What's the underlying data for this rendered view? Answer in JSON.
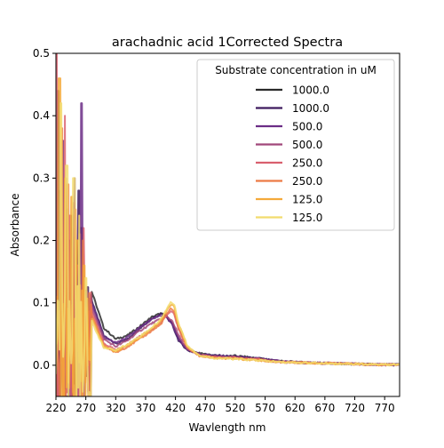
{
  "chart_data": {
    "type": "line",
    "title": "arachadnic acid 1Corrected Spectra",
    "xlabel": "Wavlength nm",
    "ylabel": "Absorbance",
    "xlim": [
      220,
      795
    ],
    "ylim": [
      -0.05,
      0.5
    ],
    "xticks": [
      220,
      270,
      320,
      370,
      420,
      470,
      520,
      570,
      620,
      670,
      720,
      770
    ],
    "yticks": [
      0.0,
      0.1,
      0.2,
      0.3,
      0.4,
      0.5
    ],
    "xtick_labels": [
      "220",
      "270",
      "320",
      "370",
      "420",
      "470",
      "520",
      "570",
      "620",
      "670",
      "720",
      "770"
    ],
    "ytick_labels": [
      "0.0",
      "0.1",
      "0.2",
      "0.3",
      "0.4",
      "0.5"
    ],
    "grid": false,
    "legend": {
      "title": "Substrate concentration in uM",
      "location": "upper right"
    },
    "series": [
      {
        "name": "1000.0",
        "color": "#2b2b2b",
        "spikes": [
          [
            226,
            0.28
          ],
          [
            238,
            0.25
          ],
          [
            248,
            0.24
          ],
          [
            262,
            0.22
          ],
          [
            270,
            0.05
          ]
        ],
        "points": [
          [
            280,
            0.118
          ],
          [
            300,
            0.06
          ],
          [
            320,
            0.042
          ],
          [
            340,
            0.048
          ],
          [
            360,
            0.062
          ],
          [
            380,
            0.077
          ],
          [
            395,
            0.083
          ],
          [
            405,
            0.079
          ],
          [
            415,
            0.066
          ],
          [
            425,
            0.042
          ],
          [
            440,
            0.025
          ],
          [
            460,
            0.019
          ],
          [
            480,
            0.016
          ],
          [
            500,
            0.014
          ],
          [
            520,
            0.015
          ],
          [
            540,
            0.013
          ],
          [
            560,
            0.011
          ],
          [
            580,
            0.008
          ],
          [
            600,
            0.006
          ],
          [
            640,
            0.004
          ],
          [
            680,
            0.003
          ],
          [
            720,
            0.002
          ],
          [
            760,
            0.001
          ],
          [
            795,
            0.001
          ]
        ]
      },
      {
        "name": "1000.0",
        "color": "#3d1a5e",
        "spikes": [
          [
            224,
            0.44
          ],
          [
            236,
            0.3
          ],
          [
            246,
            0.22
          ],
          [
            258,
            0.28
          ],
          [
            268,
            0.12
          ]
        ],
        "points": [
          [
            280,
            0.104
          ],
          [
            300,
            0.048
          ],
          [
            320,
            0.034
          ],
          [
            340,
            0.042
          ],
          [
            360,
            0.058
          ],
          [
            380,
            0.074
          ],
          [
            395,
            0.082
          ],
          [
            405,
            0.078
          ],
          [
            415,
            0.064
          ],
          [
            425,
            0.04
          ],
          [
            440,
            0.024
          ],
          [
            460,
            0.018
          ],
          [
            480,
            0.016
          ],
          [
            500,
            0.015
          ],
          [
            520,
            0.014
          ],
          [
            540,
            0.012
          ],
          [
            560,
            0.011
          ],
          [
            580,
            0.008
          ],
          [
            600,
            0.006
          ],
          [
            640,
            0.004
          ],
          [
            680,
            0.003
          ],
          [
            720,
            0.002
          ],
          [
            760,
            0.001
          ],
          [
            795,
            0.001
          ]
        ]
      },
      {
        "name": "500.0",
        "color": "#6b2d86",
        "spikes": [
          [
            232,
            0.36
          ],
          [
            242,
            0.2
          ],
          [
            252,
            0.3
          ],
          [
            262,
            0.42
          ],
          [
            272,
            0.1
          ]
        ],
        "points": [
          [
            280,
            0.098
          ],
          [
            300,
            0.045
          ],
          [
            320,
            0.036
          ],
          [
            340,
            0.045
          ],
          [
            360,
            0.06
          ],
          [
            380,
            0.073
          ],
          [
            395,
            0.08
          ],
          [
            405,
            0.077
          ],
          [
            415,
            0.065
          ],
          [
            425,
            0.043
          ],
          [
            440,
            0.025
          ],
          [
            460,
            0.018
          ],
          [
            480,
            0.015
          ],
          [
            500,
            0.014
          ],
          [
            520,
            0.013
          ],
          [
            540,
            0.012
          ],
          [
            560,
            0.01
          ],
          [
            580,
            0.008
          ],
          [
            600,
            0.006
          ],
          [
            640,
            0.004
          ],
          [
            680,
            0.003
          ],
          [
            720,
            0.002
          ],
          [
            760,
            0.001
          ],
          [
            795,
            0.001
          ]
        ]
      },
      {
        "name": "500.0",
        "color": "#a1477a",
        "spikes": [
          [
            228,
            0.32
          ],
          [
            240,
            0.18
          ],
          [
            250,
            0.26
          ],
          [
            260,
            0.21
          ],
          [
            270,
            0.08
          ]
        ],
        "points": [
          [
            280,
            0.092
          ],
          [
            300,
            0.042
          ],
          [
            320,
            0.03
          ],
          [
            340,
            0.04
          ],
          [
            360,
            0.055
          ],
          [
            380,
            0.067
          ],
          [
            395,
            0.074
          ],
          [
            405,
            0.078
          ],
          [
            415,
            0.071
          ],
          [
            425,
            0.048
          ],
          [
            440,
            0.025
          ],
          [
            460,
            0.017
          ],
          [
            480,
            0.014
          ],
          [
            500,
            0.013
          ],
          [
            520,
            0.013
          ],
          [
            540,
            0.011
          ],
          [
            560,
            0.01
          ],
          [
            580,
            0.007
          ],
          [
            600,
            0.005
          ],
          [
            640,
            0.004
          ],
          [
            680,
            0.003
          ],
          [
            720,
            0.002
          ],
          [
            760,
            0.001
          ],
          [
            795,
            0.001
          ]
        ]
      },
      {
        "name": "250.0",
        "color": "#d9606e",
        "spikes": [
          [
            222,
            0.5
          ],
          [
            234,
            0.4
          ],
          [
            244,
            0.24
          ],
          [
            256,
            0.16
          ],
          [
            266,
            0.22
          ]
        ],
        "points": [
          [
            280,
            0.085
          ],
          [
            300,
            0.035
          ],
          [
            320,
            0.024
          ],
          [
            340,
            0.033
          ],
          [
            360,
            0.046
          ],
          [
            380,
            0.058
          ],
          [
            395,
            0.068
          ],
          [
            405,
            0.08
          ],
          [
            412,
            0.086
          ],
          [
            418,
            0.082
          ],
          [
            425,
            0.058
          ],
          [
            440,
            0.028
          ],
          [
            460,
            0.016
          ],
          [
            480,
            0.013
          ],
          [
            500,
            0.012
          ],
          [
            520,
            0.012
          ],
          [
            540,
            0.01
          ],
          [
            560,
            0.009
          ],
          [
            580,
            0.006
          ],
          [
            600,
            0.005
          ],
          [
            640,
            0.004
          ],
          [
            680,
            0.003
          ],
          [
            720,
            0.002
          ],
          [
            760,
            0.001
          ],
          [
            795,
            0.001
          ]
        ]
      },
      {
        "name": "250.0",
        "color": "#ec7a45",
        "spikes": [
          [
            230,
            0.38
          ],
          [
            240,
            0.29
          ],
          [
            252,
            0.25
          ],
          [
            264,
            0.2
          ],
          [
            272,
            0.06
          ]
        ],
        "points": [
          [
            280,
            0.08
          ],
          [
            300,
            0.032
          ],
          [
            320,
            0.02
          ],
          [
            340,
            0.03
          ],
          [
            360,
            0.042
          ],
          [
            380,
            0.055
          ],
          [
            395,
            0.065
          ],
          [
            405,
            0.082
          ],
          [
            412,
            0.09
          ],
          [
            418,
            0.086
          ],
          [
            425,
            0.06
          ],
          [
            440,
            0.028
          ],
          [
            460,
            0.015
          ],
          [
            480,
            0.012
          ],
          [
            500,
            0.011
          ],
          [
            520,
            0.011
          ],
          [
            540,
            0.01
          ],
          [
            560,
            0.009
          ],
          [
            580,
            0.006
          ],
          [
            600,
            0.005
          ],
          [
            640,
            0.004
          ],
          [
            680,
            0.003
          ],
          [
            720,
            0.002
          ],
          [
            760,
            0.001
          ],
          [
            795,
            0.001
          ]
        ]
      },
      {
        "name": "125.0",
        "color": "#f4a93a",
        "spikes": [
          [
            226,
            0.46
          ],
          [
            236,
            0.3
          ],
          [
            246,
            0.27
          ],
          [
            256,
            0.2
          ],
          [
            268,
            0.16
          ]
        ],
        "points": [
          [
            280,
            0.075
          ],
          [
            300,
            0.03
          ],
          [
            320,
            0.022
          ],
          [
            340,
            0.032
          ],
          [
            360,
            0.044
          ],
          [
            380,
            0.058
          ],
          [
            395,
            0.07
          ],
          [
            405,
            0.088
          ],
          [
            412,
            0.097
          ],
          [
            418,
            0.094
          ],
          [
            425,
            0.066
          ],
          [
            440,
            0.03
          ],
          [
            460,
            0.016
          ],
          [
            480,
            0.012
          ],
          [
            500,
            0.011
          ],
          [
            520,
            0.011
          ],
          [
            540,
            0.009
          ],
          [
            560,
            0.008
          ],
          [
            580,
            0.006
          ],
          [
            600,
            0.005
          ],
          [
            640,
            0.004
          ],
          [
            680,
            0.003
          ],
          [
            720,
            0.002
          ],
          [
            760,
            0.001
          ],
          [
            795,
            0.001
          ]
        ]
      },
      {
        "name": "125.0",
        "color": "#f2dc6e",
        "spikes": [
          [
            228,
            0.42
          ],
          [
            238,
            0.32
          ],
          [
            250,
            0.3
          ],
          [
            260,
            0.24
          ],
          [
            270,
            0.14
          ]
        ],
        "points": [
          [
            280,
            0.07
          ],
          [
            300,
            0.028
          ],
          [
            320,
            0.024
          ],
          [
            340,
            0.034
          ],
          [
            360,
            0.046
          ],
          [
            380,
            0.06
          ],
          [
            395,
            0.073
          ],
          [
            405,
            0.09
          ],
          [
            412,
            0.101
          ],
          [
            418,
            0.097
          ],
          [
            425,
            0.068
          ],
          [
            440,
            0.031
          ],
          [
            460,
            0.016
          ],
          [
            480,
            0.012
          ],
          [
            500,
            0.011
          ],
          [
            520,
            0.01
          ],
          [
            540,
            0.009
          ],
          [
            560,
            0.008
          ],
          [
            580,
            0.006
          ],
          [
            600,
            0.005
          ],
          [
            640,
            0.004
          ],
          [
            680,
            0.003
          ],
          [
            720,
            0.002
          ],
          [
            760,
            0.001
          ],
          [
            795,
            0.001
          ]
        ]
      }
    ]
  }
}
